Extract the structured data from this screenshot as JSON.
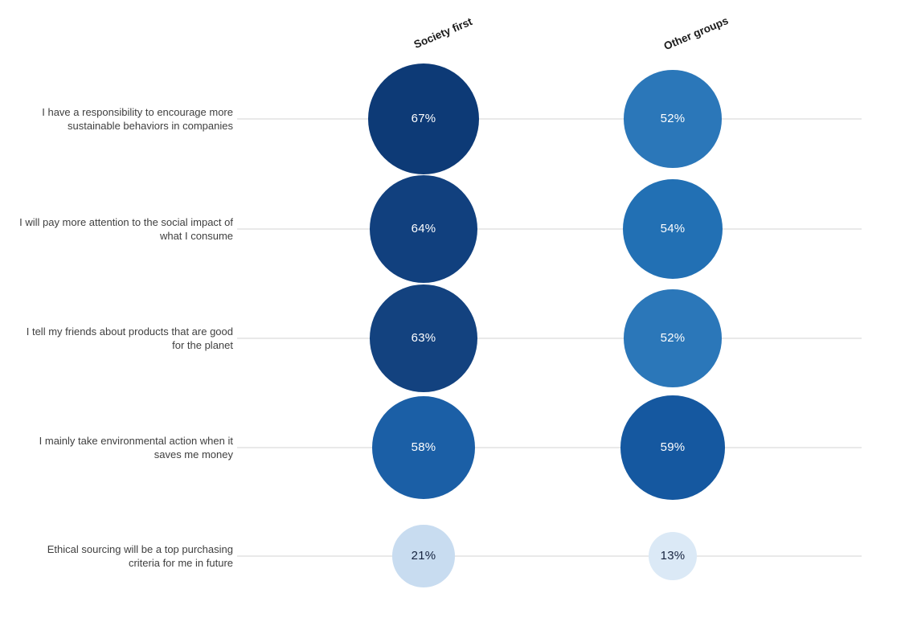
{
  "chart_data": {
    "type": "bubble",
    "title": "",
    "column_headers": [
      "Society first",
      "Other groups"
    ],
    "categories": [
      "I have a responsibility to encourage more sustainable behaviors in companies",
      "I will pay more attention to the social impact of what I consume",
      "I tell my friends about products that are good for the planet",
      "I mainly take environmental action when it saves me money",
      "Ethical sourcing will be a top purchasing criteria for me in future"
    ],
    "series": [
      {
        "name": "Society first",
        "values": [
          67,
          64,
          63,
          58,
          21
        ],
        "labels": [
          "67%",
          "64%",
          "63%",
          "58%",
          "21%"
        ],
        "bubble_colors": [
          "#0d3a76",
          "#11407e",
          "#13427f",
          "#1b5fa6",
          "#c8dcf0"
        ],
        "text_colors": [
          "#ffffff",
          "#ffffff",
          "#ffffff",
          "#ffffff",
          "#16233f"
        ]
      },
      {
        "name": "Other groups",
        "values": [
          52,
          54,
          52,
          59,
          13
        ],
        "labels": [
          "52%",
          "54%",
          "52%",
          "59%",
          "13%"
        ],
        "bubble_colors": [
          "#2b77b9",
          "#2270b4",
          "#2b77b9",
          "#1558a0",
          "#dbe9f6"
        ],
        "text_colors": [
          "#ffffff",
          "#ffffff",
          "#ffffff",
          "#ffffff",
          "#16233f"
        ]
      }
    ],
    "value_suffix": "%",
    "bubble_sizing": "area-proportional",
    "legend_position": "top-rotated-column-headers",
    "grid": "horizontal-only",
    "gridline_color": "#e9e9e9",
    "label_color": "#404040"
  }
}
